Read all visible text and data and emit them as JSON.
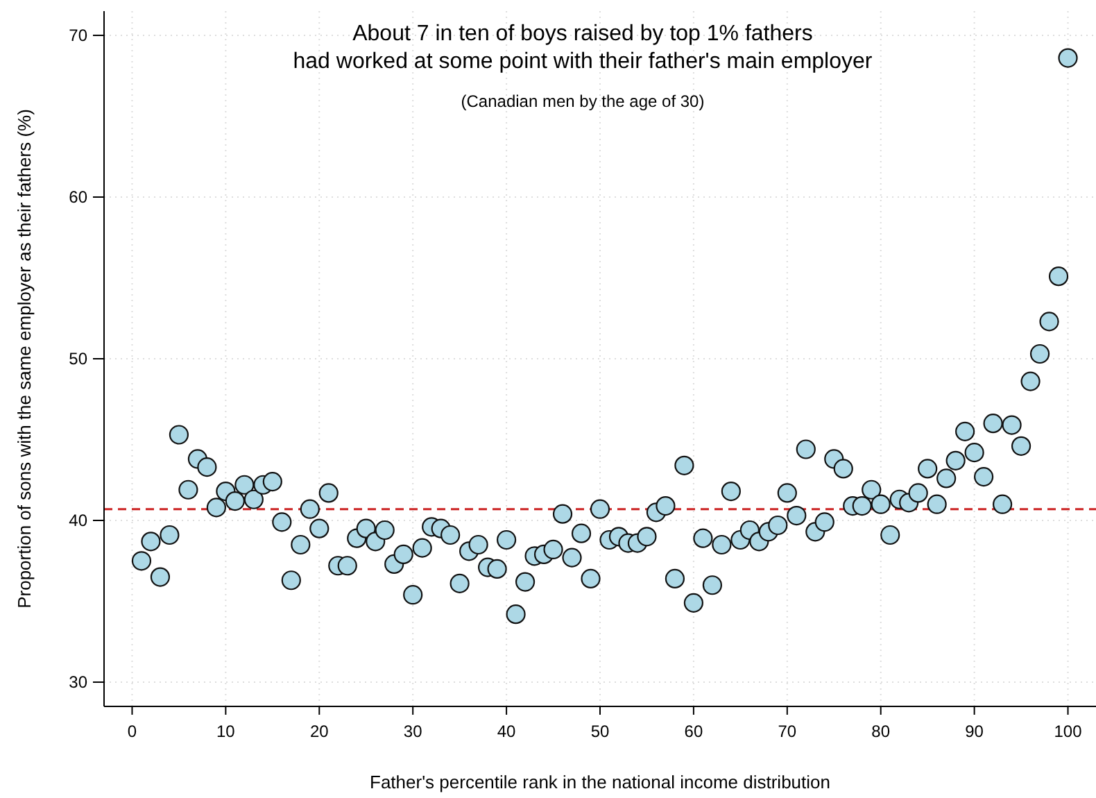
{
  "chart_data": {
    "type": "scatter",
    "title": "About 7 in ten of boys raised by top 1% fathers\nhad worked at some point with their father's main employer",
    "subtitle": "(Canadian men by the age of 30)",
    "xlabel": "Father's percentile rank in the national income distribution",
    "ylabel": "Proportion of sons with the same employer as their fathers (%)",
    "x": [
      1,
      2,
      3,
      4,
      5,
      6,
      7,
      8,
      9,
      10,
      11,
      12,
      13,
      14,
      15,
      16,
      17,
      18,
      19,
      20,
      21,
      22,
      23,
      24,
      25,
      26,
      27,
      28,
      29,
      30,
      31,
      32,
      33,
      34,
      35,
      36,
      37,
      38,
      39,
      40,
      41,
      42,
      43,
      44,
      45,
      46,
      47,
      48,
      49,
      50,
      51,
      52,
      53,
      54,
      55,
      56,
      57,
      58,
      59,
      60,
      61,
      62,
      63,
      64,
      65,
      66,
      67,
      68,
      69,
      70,
      71,
      72,
      73,
      74,
      75,
      76,
      77,
      78,
      79,
      80,
      81,
      82,
      83,
      84,
      85,
      86,
      87,
      88,
      89,
      90,
      91,
      92,
      93,
      94,
      95,
      96,
      97,
      98,
      99,
      100
    ],
    "series": [
      {
        "color": "#add8e6",
        "values": [
          37.5,
          38.7,
          36.5,
          39.1,
          45.3,
          41.9,
          43.8,
          43.3,
          40.8,
          41.8,
          41.2,
          42.2,
          41.3,
          42.2,
          42.4,
          39.9,
          36.3,
          38.5,
          40.7,
          39.5,
          41.7,
          37.2,
          37.2,
          38.9,
          39.5,
          38.7,
          39.4,
          37.3,
          37.9,
          35.4,
          38.3,
          39.6,
          39.5,
          39.1,
          36.1,
          38.1,
          38.5,
          37.1,
          37.0,
          38.8,
          34.2,
          36.2,
          37.8,
          37.9,
          38.2,
          40.4,
          37.7,
          39.2,
          36.4,
          40.7,
          38.8,
          39.0,
          38.6,
          38.6,
          39.0,
          40.5,
          40.9,
          36.4,
          43.4,
          34.9,
          38.9,
          36.0,
          38.5,
          41.8,
          38.8,
          39.4,
          38.7,
          39.3,
          39.7,
          41.7,
          40.3,
          44.4,
          39.3,
          39.9,
          43.8,
          43.2,
          40.9,
          40.9,
          41.9,
          41.0,
          39.1,
          41.3,
          41.1,
          41.7,
          43.2,
          41.0,
          42.6,
          43.7,
          45.5,
          44.2,
          42.7,
          46.0,
          41.0,
          45.9,
          44.6,
          48.6,
          50.3,
          52.3,
          55.1,
          68.6
        ]
      }
    ],
    "xlim": [
      -3,
      103
    ],
    "xticks": [
      0,
      10,
      20,
      30,
      40,
      50,
      60,
      70,
      80,
      90,
      100
    ],
    "ylim": [
      28.5,
      71.5
    ],
    "yticks": [
      30,
      40,
      50,
      60,
      70
    ],
    "grid": true,
    "marker": "circle",
    "ref_lines": [
      {
        "axis": "y",
        "value": 40.7,
        "color": "#cc2222",
        "line_style": "dashed"
      }
    ]
  }
}
